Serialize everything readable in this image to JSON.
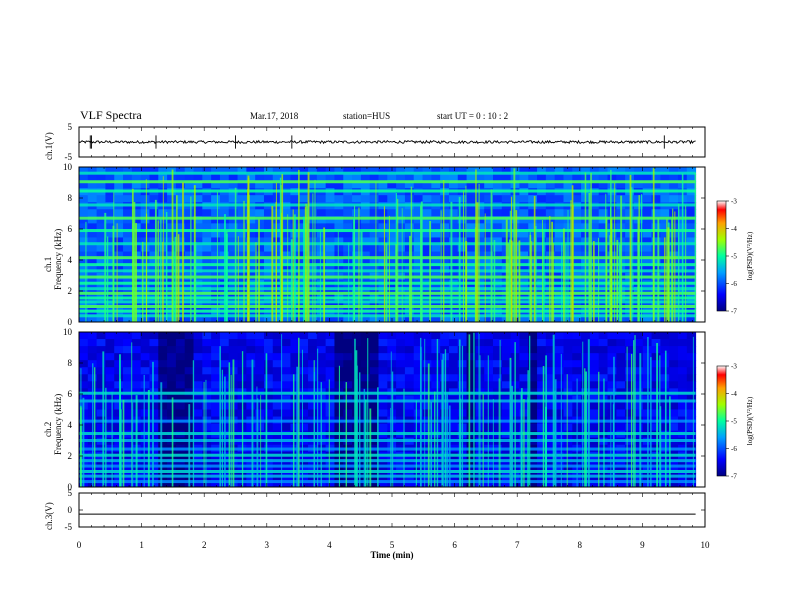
{
  "header": {
    "title": "VLF Spectra",
    "date": "Mar.17, 2018",
    "station": "station=HUS",
    "start_ut": "start UT =  0 : 10 : 2"
  },
  "chart_data": [
    {
      "type": "line",
      "panel": "ch1-waveform",
      "ylabel": "ch.1(V)",
      "ylim": [
        -5,
        5
      ],
      "yticks": [
        "5",
        "-5"
      ],
      "series": [
        {
          "name": "ch.1",
          "description_level": 0,
          "spikes": [
            0.18,
            0.2,
            1.23,
            2.5,
            3.4,
            9.35
          ]
        }
      ],
      "xlim": [
        0,
        10
      ]
    },
    {
      "type": "heatmap",
      "panel": "ch1-spectrogram",
      "ylabel": "Frequency (kHz)",
      "channel_label": "ch.1",
      "ylim": [
        0,
        10
      ],
      "yticks": [
        "0",
        "2",
        "4",
        "6",
        "8",
        "10"
      ],
      "xlim": [
        0,
        9.85
      ],
      "bands_khz": [
        0.4,
        0.7,
        1.0,
        1.3,
        1.55,
        1.85,
        2.15,
        2.5,
        2.9,
        3.3,
        3.7,
        4.15,
        5.05,
        5.9,
        6.7,
        7.55,
        8.45,
        9.05,
        9.6
      ],
      "colorbar": {
        "label": "log(PSD)(V²/Hz)",
        "range": [
          -7,
          -3
        ],
        "ticks": [
          "-3",
          "-4",
          "-5",
          "-6",
          "-7"
        ]
      }
    },
    {
      "type": "heatmap",
      "panel": "ch2-spectrogram",
      "ylabel": "Frequency (kHz)",
      "channel_label": "ch.2",
      "ylim": [
        0,
        10
      ],
      "yticks": [
        "0",
        "2",
        "4",
        "6",
        "8",
        "10"
      ],
      "xlim": [
        0,
        9.85
      ],
      "bands_khz": [
        0.35,
        0.7,
        1.0,
        1.35,
        1.7,
        2.05,
        2.45,
        3.0,
        3.45,
        4.25,
        5.55,
        6.05
      ],
      "dark_intervals_min": [
        [
          1.3,
          1.8
        ],
        [
          4.1,
          4.85
        ],
        [
          6.2,
          6.35
        ],
        [
          7.15,
          7.35
        ]
      ],
      "colorbar": {
        "label": "log(PSD)(V²/Hz)",
        "range": [
          -7,
          -3
        ],
        "ticks": [
          "-3",
          "-4",
          "-5",
          "-6",
          "-7"
        ]
      }
    },
    {
      "type": "line",
      "panel": "ch3-waveform",
      "ylabel": "ch.3(V)",
      "ylim": [
        -5,
        5
      ],
      "yticks": [
        "5",
        "0",
        "-5"
      ],
      "series": [
        {
          "name": "ch.3",
          "level": -1.2
        }
      ],
      "xlim": [
        0,
        10
      ]
    }
  ],
  "xaxis": {
    "label": "Time (min)",
    "ticks": [
      "0",
      "1",
      "2",
      "3",
      "4",
      "5",
      "6",
      "7",
      "8",
      "9",
      "10"
    ],
    "range": [
      0,
      10
    ]
  }
}
